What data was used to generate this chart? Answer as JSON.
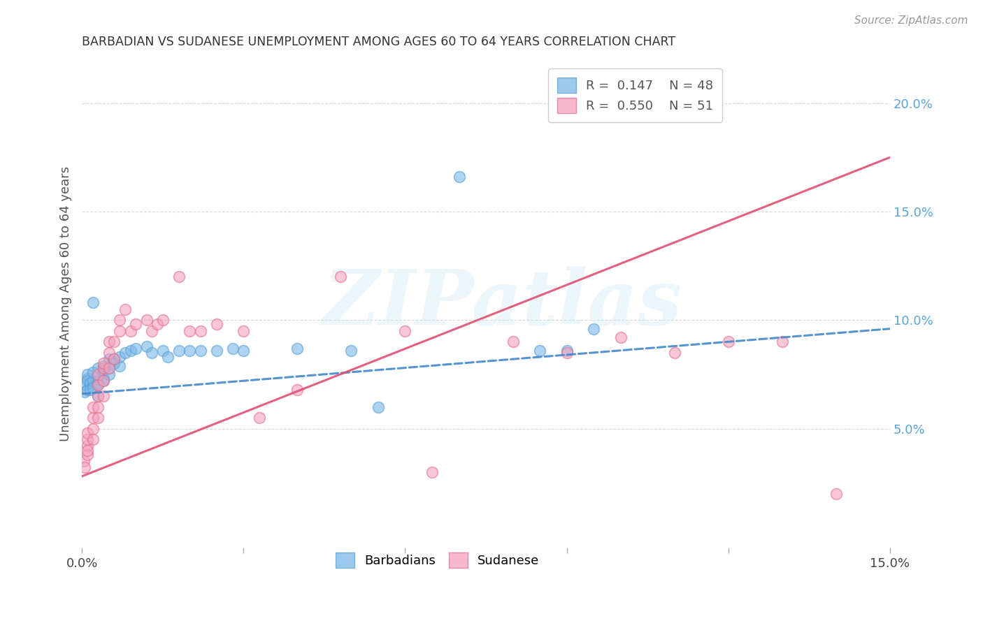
{
  "title": "BARBADIAN VS SUDANESE UNEMPLOYMENT AMONG AGES 60 TO 64 YEARS CORRELATION CHART",
  "source": "Source: ZipAtlas.com",
  "ylabel": "Unemployment Among Ages 60 to 64 years",
  "xlim": [
    0.0,
    0.15
  ],
  "ylim": [
    -0.005,
    0.22
  ],
  "barbadian_color": "#7ab8e8",
  "barbadian_edge_color": "#5a9fd4",
  "sudanese_color": "#f5a0be",
  "sudanese_edge_color": "#e0708a",
  "barbadian_line_color": "#4488cc",
  "sudanese_line_color": "#e05070",
  "legend_R_barbadian": "0.147",
  "legend_N_barbadian": "48",
  "legend_R_sudanese": "0.550",
  "legend_N_sudanese": "51",
  "watermark": "ZIPatlas",
  "background_color": "#ffffff",
  "grid_color": "#d8d8d8",
  "barb_trend_x0": 0.0,
  "barb_trend_x1": 0.15,
  "barb_trend_y0": 0.066,
  "barb_trend_y1": 0.096,
  "sud_trend_x0": 0.0,
  "sud_trend_x1": 0.15,
  "sud_trend_y0": 0.028,
  "sud_trend_y1": 0.175,
  "barbadian_x": [
    0.0005,
    0.0008,
    0.001,
    0.001,
    0.001,
    0.001,
    0.0015,
    0.0015,
    0.002,
    0.002,
    0.002,
    0.002,
    0.003,
    0.003,
    0.003,
    0.003,
    0.003,
    0.004,
    0.004,
    0.004,
    0.004,
    0.005,
    0.005,
    0.005,
    0.006,
    0.006,
    0.007,
    0.007,
    0.008,
    0.009,
    0.01,
    0.012,
    0.013,
    0.015,
    0.016,
    0.018,
    0.02,
    0.022,
    0.025,
    0.028,
    0.03,
    0.04,
    0.05,
    0.055,
    0.07,
    0.085,
    0.09,
    0.095
  ],
  "barbadian_y": [
    0.067,
    0.07,
    0.068,
    0.073,
    0.075,
    0.072,
    0.071,
    0.068,
    0.108,
    0.072,
    0.069,
    0.076,
    0.07,
    0.065,
    0.071,
    0.078,
    0.074,
    0.079,
    0.073,
    0.077,
    0.072,
    0.082,
    0.078,
    0.075,
    0.082,
    0.08,
    0.079,
    0.083,
    0.085,
    0.086,
    0.087,
    0.088,
    0.085,
    0.086,
    0.083,
    0.086,
    0.086,
    0.086,
    0.086,
    0.087,
    0.086,
    0.087,
    0.086,
    0.06,
    0.166,
    0.086,
    0.086,
    0.096
  ],
  "sudanese_x": [
    0.0003,
    0.0005,
    0.001,
    0.001,
    0.001,
    0.001,
    0.001,
    0.002,
    0.002,
    0.002,
    0.002,
    0.003,
    0.003,
    0.003,
    0.003,
    0.003,
    0.004,
    0.004,
    0.004,
    0.004,
    0.005,
    0.005,
    0.005,
    0.006,
    0.006,
    0.007,
    0.007,
    0.008,
    0.009,
    0.01,
    0.012,
    0.013,
    0.014,
    0.015,
    0.018,
    0.02,
    0.022,
    0.025,
    0.03,
    0.033,
    0.04,
    0.048,
    0.06,
    0.065,
    0.08,
    0.09,
    0.1,
    0.11,
    0.12,
    0.13,
    0.14
  ],
  "sudanese_y": [
    0.035,
    0.032,
    0.038,
    0.042,
    0.045,
    0.048,
    0.04,
    0.05,
    0.055,
    0.06,
    0.045,
    0.055,
    0.06,
    0.065,
    0.07,
    0.075,
    0.065,
    0.078,
    0.072,
    0.08,
    0.078,
    0.085,
    0.09,
    0.082,
    0.09,
    0.095,
    0.1,
    0.105,
    0.095,
    0.098,
    0.1,
    0.095,
    0.098,
    0.1,
    0.12,
    0.095,
    0.095,
    0.098,
    0.095,
    0.055,
    0.068,
    0.12,
    0.095,
    0.03,
    0.09,
    0.085,
    0.092,
    0.085,
    0.09,
    0.09,
    0.02
  ]
}
